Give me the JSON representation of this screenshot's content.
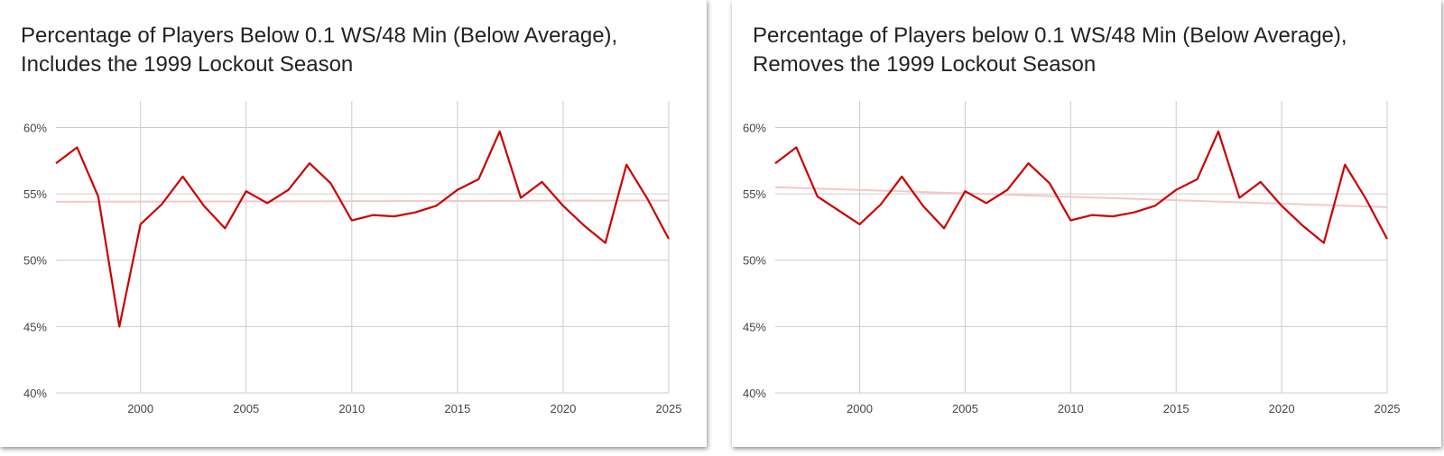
{
  "chart_data": [
    {
      "type": "line",
      "title_line1": "Percentage of Players Below 0.1 WS/48 Min (Below Average),",
      "title_line2": "Includes the 1999 Lockout Season",
      "xlabel": "",
      "ylabel": "",
      "xlim": [
        1996,
        2025
      ],
      "ylim": [
        40,
        62
      ],
      "x_ticks": [
        "2000",
        "2005",
        "2010",
        "2015",
        "2020",
        "2025"
      ],
      "y_ticks": [
        "40%",
        "45%",
        "50%",
        "55%",
        "60%"
      ],
      "grid": true,
      "legend": "none",
      "series": [
        {
          "color": "#cc0000",
          "points": [
            {
              "x": 1996,
              "y": 57.3
            },
            {
              "x": 1997,
              "y": 58.5
            },
            {
              "x": 1998,
              "y": 54.8
            },
            {
              "x": 1999,
              "y": 45.0
            },
            {
              "x": 2000,
              "y": 52.7
            },
            {
              "x": 2001,
              "y": 54.2
            },
            {
              "x": 2002,
              "y": 56.3
            },
            {
              "x": 2003,
              "y": 54.1
            },
            {
              "x": 2004,
              "y": 52.4
            },
            {
              "x": 2005,
              "y": 55.2
            },
            {
              "x": 2006,
              "y": 54.3
            },
            {
              "x": 2007,
              "y": 55.3
            },
            {
              "x": 2008,
              "y": 57.3
            },
            {
              "x": 2009,
              "y": 55.8
            },
            {
              "x": 2010,
              "y": 53.0
            },
            {
              "x": 2011,
              "y": 53.4
            },
            {
              "x": 2012,
              "y": 53.3
            },
            {
              "x": 2013,
              "y": 53.6
            },
            {
              "x": 2014,
              "y": 54.1
            },
            {
              "x": 2015,
              "y": 55.3
            },
            {
              "x": 2016,
              "y": 56.1
            },
            {
              "x": 2017,
              "y": 59.7
            },
            {
              "x": 2018,
              "y": 54.7
            },
            {
              "x": 2019,
              "y": 55.9
            },
            {
              "x": 2020,
              "y": 54.1
            },
            {
              "x": 2021,
              "y": 52.6
            },
            {
              "x": 2022,
              "y": 51.3
            },
            {
              "x": 2023,
              "y": 57.2
            },
            {
              "x": 2024,
              "y": 54.6
            },
            {
              "x": 2025,
              "y": 51.6
            }
          ]
        }
      ],
      "trendline": {
        "color": "#f4c7c7",
        "start": {
          "x": 1996,
          "y": 54.4
        },
        "end": {
          "x": 2025,
          "y": 54.5
        }
      }
    },
    {
      "type": "line",
      "title_line1": "Percentage of Players below 0.1 WS/48 Min (Below Average),",
      "title_line2": "Removes the 1999 Lockout Season",
      "xlabel": "",
      "ylabel": "",
      "xlim": [
        1996,
        2025
      ],
      "ylim": [
        40,
        62
      ],
      "x_ticks": [
        "2000",
        "2005",
        "2010",
        "2015",
        "2020",
        "2025"
      ],
      "y_ticks": [
        "40%",
        "45%",
        "50%",
        "55%",
        "60%"
      ],
      "grid": true,
      "legend": "none",
      "series": [
        {
          "color": "#cc0000",
          "points": [
            {
              "x": 1996,
              "y": 57.3
            },
            {
              "x": 1997,
              "y": 58.5
            },
            {
              "x": 1998,
              "y": 54.8
            },
            {
              "x": 2000,
              "y": 52.7
            },
            {
              "x": 2001,
              "y": 54.2
            },
            {
              "x": 2002,
              "y": 56.3
            },
            {
              "x": 2003,
              "y": 54.1
            },
            {
              "x": 2004,
              "y": 52.4
            },
            {
              "x": 2005,
              "y": 55.2
            },
            {
              "x": 2006,
              "y": 54.3
            },
            {
              "x": 2007,
              "y": 55.3
            },
            {
              "x": 2008,
              "y": 57.3
            },
            {
              "x": 2009,
              "y": 55.8
            },
            {
              "x": 2010,
              "y": 53.0
            },
            {
              "x": 2011,
              "y": 53.4
            },
            {
              "x": 2012,
              "y": 53.3
            },
            {
              "x": 2013,
              "y": 53.6
            },
            {
              "x": 2014,
              "y": 54.1
            },
            {
              "x": 2015,
              "y": 55.3
            },
            {
              "x": 2016,
              "y": 56.1
            },
            {
              "x": 2017,
              "y": 59.7
            },
            {
              "x": 2018,
              "y": 54.7
            },
            {
              "x": 2019,
              "y": 55.9
            },
            {
              "x": 2020,
              "y": 54.1
            },
            {
              "x": 2021,
              "y": 52.6
            },
            {
              "x": 2022,
              "y": 51.3
            },
            {
              "x": 2023,
              "y": 57.2
            },
            {
              "x": 2024,
              "y": 54.6
            },
            {
              "x": 2025,
              "y": 51.6
            }
          ]
        }
      ],
      "trendline": {
        "color": "#f4c7c7",
        "start": {
          "x": 1996,
          "y": 55.5
        },
        "end": {
          "x": 2025,
          "y": 54.0
        }
      }
    }
  ]
}
